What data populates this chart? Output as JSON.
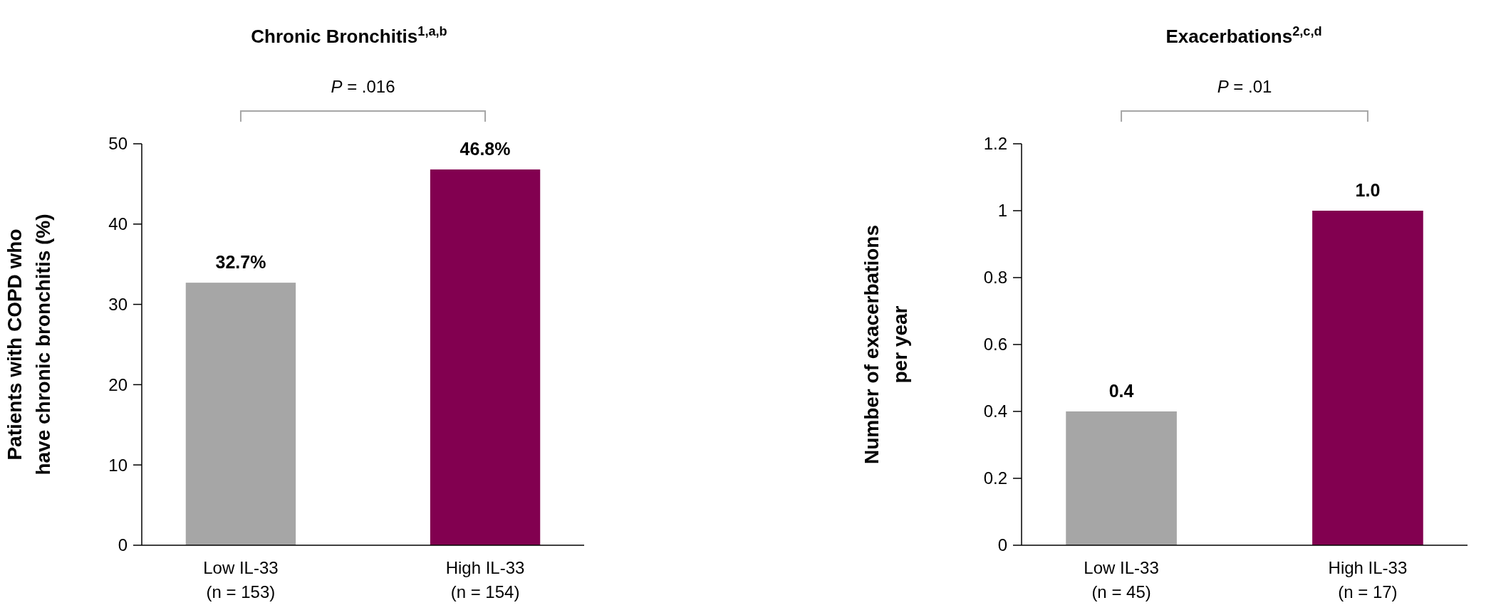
{
  "chart_data": [
    {
      "type": "bar",
      "title": "Chronic Bronchitis$^{1,a,b}$",
      "ylabel": "Patients with COPD who\nhave chronic bronchitis (%)",
      "categories": [
        "Low IL-33\n(n = 153)",
        "High IL-33\n(n = 154)"
      ],
      "values": [
        32.7,
        46.8
      ],
      "colors": [
        "#a6a6a6",
        "#820050"
      ],
      "value_labels": [
        "32.7%",
        "46.8%"
      ],
      "ylim": [
        0,
        50
      ],
      "yticks": [
        0,
        10,
        20,
        30,
        40,
        50
      ],
      "grid": false,
      "annotations": [
        "P = .016"
      ]
    },
    {
      "type": "bar",
      "title": "Exacerbations$^{2,c,d}$",
      "ylabel": "Number of exacerbations\nper year",
      "categories": [
        "Low IL-33\n(n = 45)",
        "High IL-33\n(n = 17)"
      ],
      "values": [
        0.4,
        1.0
      ],
      "colors": [
        "#a6a6a6",
        "#820050"
      ],
      "value_labels": [
        "0.4",
        "1.0"
      ],
      "ylim": [
        0,
        1.2
      ],
      "yticks": [
        0,
        0.2,
        0.4,
        0.6,
        0.8,
        1,
        1.2
      ],
      "grid": false,
      "annotations": [
        "P = .01"
      ]
    }
  ]
}
